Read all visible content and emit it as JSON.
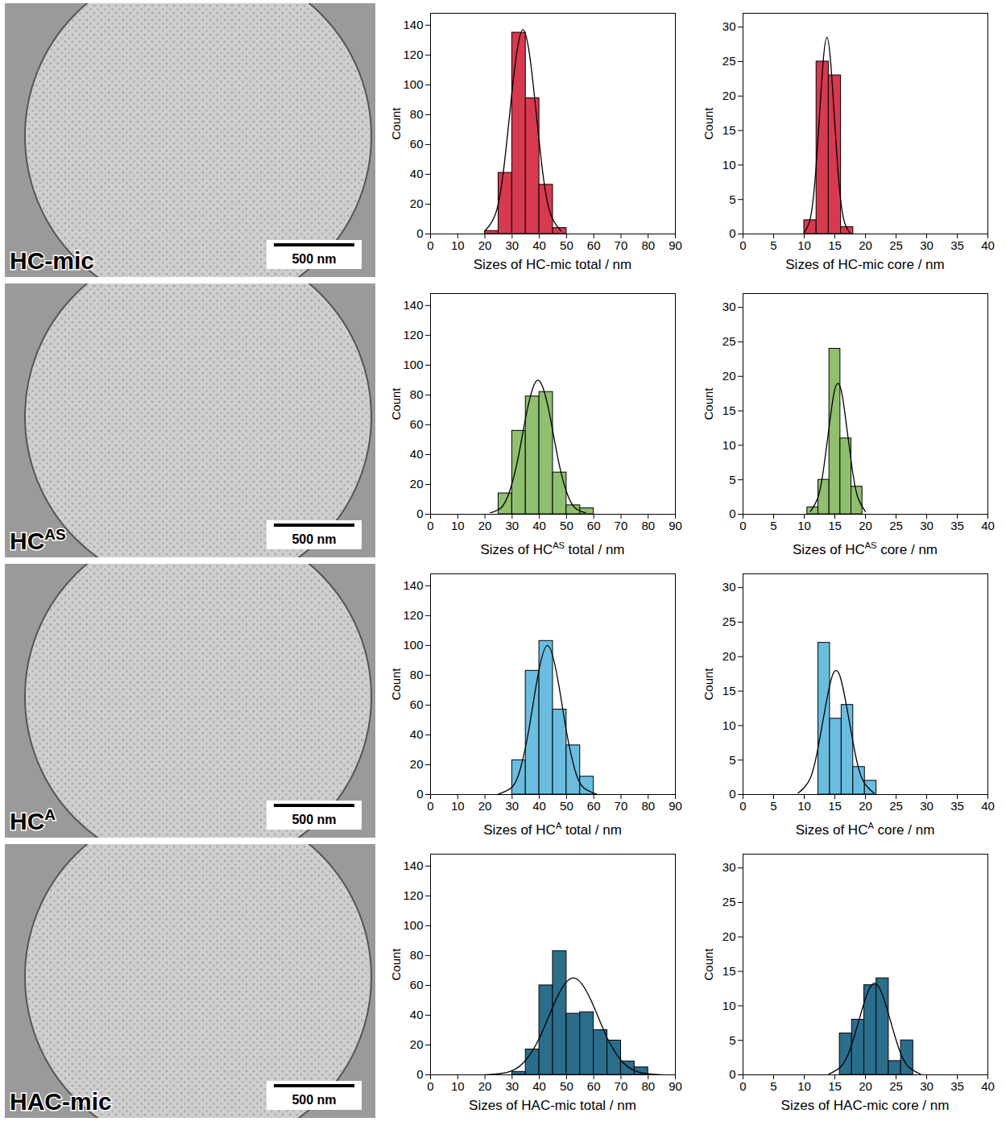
{
  "chart_data": [
    {
      "type": "histogram",
      "color": "#d7394f",
      "ylabel": "Count",
      "xlabel": {
        "text": "Sizes of HC-mic total / nm"
      },
      "bins": [
        20,
        25,
        30,
        35,
        40,
        45,
        50
      ],
      "counts": [
        2,
        41,
        135,
        91,
        33,
        4
      ],
      "fit": {
        "x": [
          20,
          24,
          27,
          30,
          32,
          34,
          36,
          38,
          41,
          44,
          48
        ],
        "y": [
          2,
          14,
          45,
          96,
          125,
          137,
          125,
          96,
          45,
          14,
          2
        ]
      },
      "xlim": [
        0,
        90
      ],
      "xticks": [
        0,
        10,
        20,
        30,
        40,
        50,
        60,
        70,
        80,
        90
      ],
      "ylim": [
        0,
        148
      ],
      "yticks": [
        0,
        20,
        40,
        60,
        80,
        100,
        120,
        140
      ],
      "grid": false
    },
    {
      "type": "histogram",
      "color": "#d7394f",
      "ylabel": "Count",
      "xlabel": {
        "text": "Sizes of HC-mic core / nm"
      },
      "bins": [
        10,
        12,
        14,
        16,
        18
      ],
      "counts": [
        2,
        25,
        23,
        1
      ],
      "fit": {
        "x": [
          10,
          11,
          11.8,
          12.5,
          13.1,
          13.7,
          14.3,
          14.9,
          15.6,
          16.4,
          17.4
        ],
        "y": [
          0.2,
          2.3,
          8.2,
          17.3,
          25.1,
          28.5,
          25.1,
          17.3,
          8.2,
          2.3,
          0.2
        ]
      },
      "xlim": [
        0,
        40
      ],
      "xticks": [
        0,
        5,
        10,
        15,
        20,
        25,
        30,
        35,
        40
      ],
      "ylim": [
        0,
        32
      ],
      "yticks": [
        0,
        5,
        10,
        15,
        20,
        25,
        30
      ],
      "grid": false
    },
    {
      "type": "histogram",
      "color": "#8fbf6f",
      "ylabel": "Count",
      "xlabel": {
        "text": "Sizes of HC",
        "sup": "AS",
        "after": " total / nm"
      },
      "bins": [
        25,
        30,
        35,
        40,
        45,
        50,
        55,
        60
      ],
      "counts": [
        14,
        56,
        79,
        82,
        28,
        6,
        4
      ],
      "fit": {
        "x": [
          22,
          26,
          29,
          32,
          35,
          37.5,
          39.5,
          41.5,
          44,
          47,
          50,
          53,
          57
        ],
        "y": [
          1,
          4.5,
          15,
          36,
          65,
          84,
          90,
          84,
          65,
          36,
          15,
          4.5,
          1
        ]
      },
      "xlim": [
        0,
        90
      ],
      "xticks": [
        0,
        10,
        20,
        30,
        40,
        50,
        60,
        70,
        80,
        90
      ],
      "ylim": [
        0,
        148
      ],
      "yticks": [
        0,
        20,
        40,
        60,
        80,
        100,
        120,
        140
      ],
      "grid": false
    },
    {
      "type": "histogram",
      "color": "#8fbf6f",
      "ylabel": "Count",
      "xlabel": {
        "text": "Sizes of HC",
        "sup": "AS",
        "after": " core / nm"
      },
      "bins": [
        10.5,
        12.3,
        14.1,
        15.9,
        17.7,
        19.5
      ],
      "counts": [
        1,
        5,
        24,
        11,
        4
      ],
      "fit": {
        "x": [
          11,
          12.3,
          13.2,
          14,
          14.8,
          15.5,
          16.2,
          17,
          17.8,
          18.7,
          20
        ],
        "y": [
          0.4,
          2.6,
          6.8,
          12.2,
          17.3,
          19,
          17.3,
          12.2,
          6.8,
          2.6,
          0.4
        ]
      },
      "xlim": [
        0,
        40
      ],
      "xticks": [
        0,
        5,
        10,
        15,
        20,
        25,
        30,
        35,
        40
      ],
      "ylim": [
        0,
        32
      ],
      "yticks": [
        0,
        5,
        10,
        15,
        20,
        25,
        30
      ],
      "grid": false
    },
    {
      "type": "histogram",
      "color": "#6bbde0",
      "ylabel": "Count",
      "xlabel": {
        "text": "Sizes of HC",
        "sup": "A",
        "after": " total / nm"
      },
      "bins": [
        30,
        35,
        40,
        45,
        50,
        55,
        60
      ],
      "counts": [
        23,
        83,
        103,
        57,
        33,
        12
      ],
      "fit": {
        "x": [
          25,
          30,
          33,
          36,
          39,
          43,
          47,
          50,
          53,
          56,
          61
        ],
        "y": [
          0.3,
          5,
          17,
          42,
          75,
          100,
          75,
          42,
          17,
          5,
          0.3
        ]
      },
      "xlim": [
        0,
        90
      ],
      "xticks": [
        0,
        10,
        20,
        30,
        40,
        50,
        60,
        70,
        80,
        90
      ],
      "ylim": [
        0,
        148
      ],
      "yticks": [
        0,
        20,
        40,
        60,
        80,
        100,
        120,
        140
      ],
      "grid": false
    },
    {
      "type": "histogram",
      "color": "#6bbde0",
      "ylabel": "Count",
      "xlabel": {
        "text": "Sizes of HC",
        "sup": "A",
        "after": " core / nm"
      },
      "bins": [
        12.3,
        14.2,
        16.1,
        18,
        19.9,
        21.8
      ],
      "counts": [
        22,
        11,
        13,
        4,
        2
      ],
      "fit": {
        "x": [
          9,
          11,
          12.3,
          13.4,
          14.4,
          15.2,
          16,
          17,
          18.1,
          19.4,
          21.4
        ],
        "y": [
          0.2,
          2.4,
          7,
          12.4,
          16.7,
          18,
          16.7,
          12.4,
          7,
          2.4,
          0.2
        ]
      },
      "xlim": [
        0,
        40
      ],
      "xticks": [
        0,
        5,
        10,
        15,
        20,
        25,
        30,
        35,
        40
      ],
      "ylim": [
        0,
        32
      ],
      "yticks": [
        0,
        5,
        10,
        15,
        20,
        25,
        30
      ],
      "grid": false
    },
    {
      "type": "histogram",
      "color": "#2a6e8c",
      "ylabel": "Count",
      "xlabel": {
        "text": "Sizes of HAC-mic total / nm"
      },
      "bins": [
        30,
        35,
        40,
        45,
        50,
        55,
        60,
        65,
        70,
        75,
        80
      ],
      "counts": [
        2,
        17,
        60,
        83,
        41,
        42,
        30,
        23,
        9,
        5
      ],
      "fit": {
        "x": [
          20,
          28,
          34,
          40,
          46,
          52.5,
          59,
          65,
          71,
          77,
          85
        ],
        "y": [
          0.1,
          1.6,
          7.8,
          24.6,
          50,
          65,
          50,
          24.6,
          7.8,
          1.6,
          0.1
        ]
      },
      "xlim": [
        0,
        90
      ],
      "xticks": [
        0,
        10,
        20,
        30,
        40,
        50,
        60,
        70,
        80,
        90
      ],
      "ylim": [
        0,
        148
      ],
      "yticks": [
        0,
        20,
        40,
        60,
        80,
        100,
        120,
        140
      ],
      "grid": false
    },
    {
      "type": "histogram",
      "color": "#2a6e8c",
      "ylabel": "Count",
      "xlabel": {
        "text": "Sizes of HAC-mic core / nm"
      },
      "bins": [
        15.8,
        17.8,
        19.8,
        21.8,
        23.8,
        25.8,
        27.8
      ],
      "counts": [
        6,
        8,
        13,
        14,
        2,
        5
      ],
      "fit": {
        "x": [
          14,
          16,
          17.5,
          19,
          20.3,
          21.5,
          22.7,
          24,
          25.5,
          27,
          29
        ],
        "y": [
          0.1,
          1.2,
          3.7,
          8.1,
          11.8,
          13.3,
          11.8,
          8.1,
          3.7,
          1.2,
          0.1
        ]
      },
      "xlim": [
        0,
        40
      ],
      "xticks": [
        0,
        5,
        10,
        15,
        20,
        25,
        30,
        35,
        40
      ],
      "ylim": [
        0,
        32
      ],
      "yticks": [
        0,
        5,
        10,
        15,
        20,
        25,
        30
      ],
      "grid": false
    }
  ],
  "micrographs": [
    {
      "label": {
        "text": "HC-mic"
      },
      "scale_bar": "500 nm"
    },
    {
      "label": {
        "text": "HC",
        "sup": "AS"
      },
      "scale_bar": "500 nm"
    },
    {
      "label": {
        "text": "HC",
        "sup": "A"
      },
      "scale_bar": "500 nm"
    },
    {
      "label": {
        "text": "HAC-mic"
      },
      "scale_bar": "500 nm"
    }
  ]
}
